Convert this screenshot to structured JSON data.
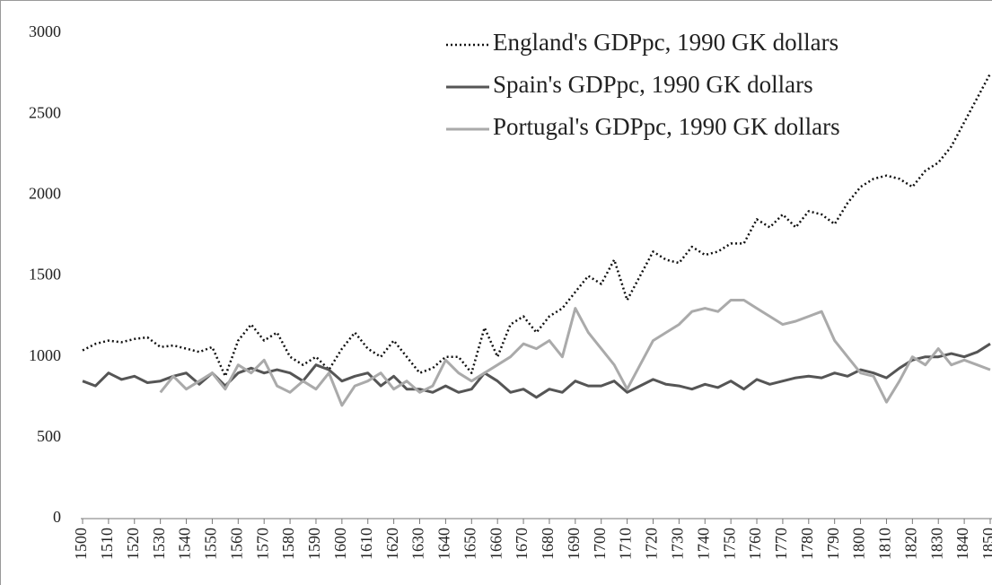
{
  "chart_data": {
    "type": "line",
    "x": [
      1500,
      1505,
      1510,
      1515,
      1520,
      1525,
      1530,
      1535,
      1540,
      1545,
      1550,
      1555,
      1560,
      1565,
      1570,
      1575,
      1580,
      1585,
      1590,
      1595,
      1600,
      1605,
      1610,
      1615,
      1620,
      1625,
      1630,
      1635,
      1640,
      1645,
      1650,
      1655,
      1660,
      1665,
      1670,
      1675,
      1680,
      1685,
      1690,
      1695,
      1700,
      1705,
      1710,
      1715,
      1720,
      1725,
      1730,
      1735,
      1740,
      1745,
      1750,
      1755,
      1760,
      1765,
      1770,
      1775,
      1780,
      1785,
      1790,
      1795,
      1800,
      1805,
      1810,
      1815,
      1820,
      1825,
      1830,
      1835,
      1840,
      1845,
      1850
    ],
    "series": [
      {
        "name": "England's GDPpc, 1990 GK dollars",
        "color": "#111111",
        "style": "dotted",
        "values": [
          1040,
          1080,
          1100,
          1090,
          1110,
          1120,
          1060,
          1070,
          1050,
          1030,
          1060,
          880,
          1100,
          1200,
          1100,
          1150,
          1000,
          950,
          1000,
          920,
          1050,
          1150,
          1050,
          1000,
          1100,
          1000,
          900,
          930,
          1000,
          1000,
          900,
          1180,
          1000,
          1200,
          1250,
          1150,
          1250,
          1300,
          1400,
          1500,
          1450,
          1600,
          1350,
          1500,
          1650,
          1600,
          1580,
          1680,
          1630,
          1650,
          1700,
          1700,
          1850,
          1800,
          1880,
          1800,
          1900,
          1880,
          1820,
          1950,
          2050,
          2100,
          2120,
          2100,
          2050,
          2150,
          2200,
          2300,
          2450,
          2600,
          2750
        ]
      },
      {
        "name": "Spain's GDPpc, 1990 GK dollars",
        "color": "#555555",
        "style": "solid",
        "values": [
          850,
          820,
          900,
          860,
          880,
          840,
          850,
          880,
          900,
          830,
          900,
          820,
          900,
          930,
          900,
          920,
          900,
          850,
          950,
          920,
          850,
          880,
          900,
          820,
          880,
          800,
          800,
          780,
          820,
          780,
          800,
          900,
          850,
          780,
          800,
          750,
          800,
          780,
          850,
          820,
          820,
          850,
          780,
          820,
          860,
          830,
          820,
          800,
          830,
          810,
          850,
          800,
          860,
          830,
          850,
          870,
          880,
          870,
          900,
          880,
          920,
          900,
          870,
          930,
          980,
          1000,
          1000,
          1020,
          1000,
          1030,
          1080
        ]
      },
      {
        "name": "Portugal's GDPpc, 1990 GK dollars",
        "color": "#aaaaaa",
        "style": "solid",
        "values": [
          null,
          null,
          null,
          null,
          null,
          null,
          780,
          880,
          800,
          850,
          900,
          800,
          950,
          900,
          980,
          820,
          780,
          850,
          800,
          900,
          700,
          820,
          850,
          900,
          800,
          850,
          780,
          820,
          980,
          900,
          850,
          900,
          950,
          1000,
          1080,
          1050,
          1100,
          1000,
          1300,
          1150,
          1050,
          950,
          800,
          950,
          1100,
          1150,
          1200,
          1280,
          1300,
          1280,
          1350,
          1350,
          1300,
          1250,
          1200,
          1220,
          1250,
          1280,
          1100,
          1000,
          900,
          880,
          720,
          850,
          1000,
          950,
          1050,
          950,
          980,
          950,
          920
        ]
      }
    ],
    "xlim": [
      1500,
      1850
    ],
    "xticks": [
      1500,
      1510,
      1520,
      1530,
      1540,
      1550,
      1560,
      1570,
      1580,
      1590,
      1600,
      1610,
      1620,
      1630,
      1640,
      1650,
      1660,
      1670,
      1680,
      1690,
      1700,
      1710,
      1720,
      1730,
      1740,
      1750,
      1760,
      1770,
      1780,
      1790,
      1800,
      1810,
      1820,
      1830,
      1840,
      1850
    ],
    "ylim": [
      0,
      3000
    ],
    "yticks": [
      0,
      500,
      1000,
      1500,
      2000,
      2500,
      3000
    ],
    "grid": false
  }
}
